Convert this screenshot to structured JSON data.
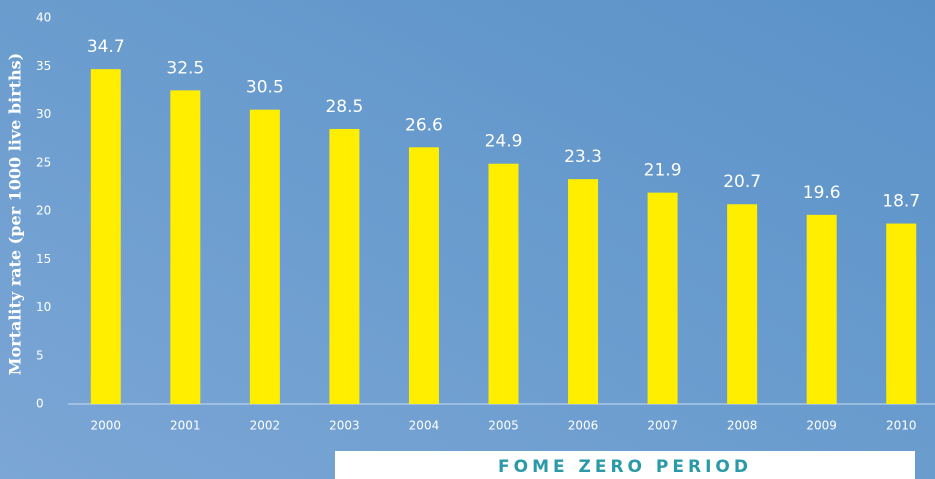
{
  "chart_data": {
    "type": "bar",
    "ylabel": "Mortality rate  (per 1000 live births)",
    "categories": [
      "2000",
      "2001",
      "2002",
      "2003",
      "2004",
      "2005",
      "2006",
      "2007",
      "2008",
      "2009",
      "2010"
    ],
    "values": [
      34.7,
      32.5,
      30.5,
      28.5,
      26.6,
      24.9,
      23.3,
      21.9,
      20.7,
      19.6,
      18.7
    ],
    "color": "#ffee00",
    "ylim": [
      0,
      40
    ],
    "yticks": [
      0,
      5,
      10,
      15,
      20,
      25,
      30,
      35,
      40
    ],
    "annotation": "FOME ZERO PERIOD"
  }
}
